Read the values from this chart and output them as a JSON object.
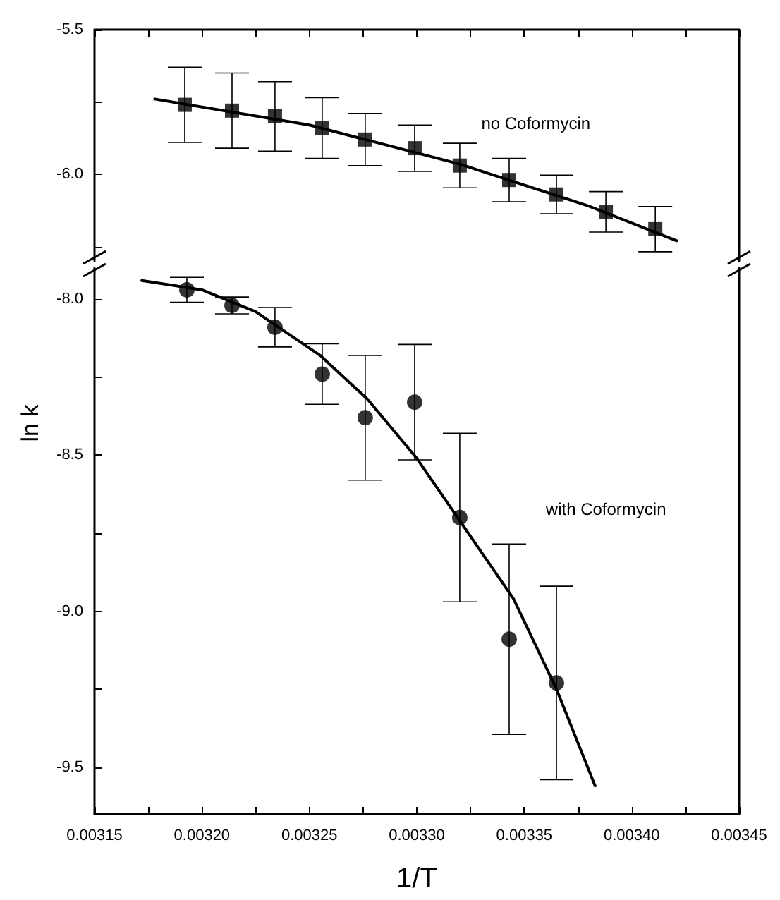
{
  "chart_data": [
    {
      "type": "scatter",
      "xlim": [
        0.00315,
        0.00345
      ],
      "ylim": [
        -6.3,
        -5.5
      ],
      "tick_labels": "y",
      "xticks": [
        {
          "value": 0.00315,
          "label": null
        },
        {
          "value": 0.003175,
          "label": null
        },
        {
          "value": 0.0032,
          "label": null
        },
        {
          "value": 0.003225,
          "label": null
        },
        {
          "value": 0.00325,
          "label": null
        },
        {
          "value": 0.003275,
          "label": null
        },
        {
          "value": 0.0033,
          "label": null
        },
        {
          "value": 0.003325,
          "label": null
        },
        {
          "value": 0.00335,
          "label": null
        },
        {
          "value": 0.003375,
          "label": null
        },
        {
          "value": 0.0034,
          "label": null
        },
        {
          "value": 0.003425,
          "label": null
        },
        {
          "value": 0.00345,
          "label": null
        }
      ],
      "yticks": [
        -5.5,
        {
          "value": -5.75,
          "label": null
        },
        {
          "value": -6.0,
          "label": "-6.0"
        },
        {
          "value": -6.25,
          "label": null
        }
      ],
      "grid": false,
      "legend": false,
      "series": [
        {
          "name": "no Coformycin",
          "type": "scatter",
          "marker": "square",
          "color": "#000000",
          "x": [
            0.003192,
            0.003214,
            0.003234,
            0.003256,
            0.003276,
            0.003299,
            0.00332,
            0.003343,
            0.003365,
            0.003388,
            0.003411
          ],
          "values": [
            -5.76,
            -5.78,
            -5.8,
            -5.84,
            -5.88,
            -5.91,
            -5.97,
            -6.02,
            -6.07,
            -6.13,
            -6.19
          ],
          "errors": [
            0.13,
            0.13,
            0.12,
            0.105,
            0.09,
            0.08,
            0.077,
            0.075,
            0.067,
            0.07,
            0.078
          ]
        },
        {
          "type": "line",
          "marker": "none",
          "line_style": "solid",
          "color": "#000000",
          "x": [
            0.003178,
            0.00325,
            0.00332,
            0.00338,
            0.003421
          ],
          "values": [
            -5.74,
            -5.83,
            -5.965,
            -6.11,
            -6.23
          ]
        }
      ]
    },
    {
      "type": "scatter",
      "xlim": [
        0.00315,
        0.00345
      ],
      "ylim": [
        -9.65,
        -7.9
      ],
      "xlabel": "1/T",
      "ylabel": "ln k",
      "xticks": [
        {
          "value": 0.00315,
          "label": "0.00315"
        },
        {
          "value": 0.003175,
          "label": null
        },
        {
          "value": 0.0032,
          "label": "0.00320"
        },
        {
          "value": 0.003225,
          "label": null
        },
        {
          "value": 0.00325,
          "label": "0.00325"
        },
        {
          "value": 0.003275,
          "label": null
        },
        {
          "value": 0.0033,
          "label": "0.00330"
        },
        {
          "value": 0.003325,
          "label": null
        },
        {
          "value": 0.00335,
          "label": "0.00335"
        },
        {
          "value": 0.003375,
          "label": null
        },
        {
          "value": 0.0034,
          "label": "0.00340"
        },
        {
          "value": 0.003425,
          "label": null
        },
        {
          "value": 0.00345,
          "label": "0.00345"
        }
      ],
      "yticks": [
        {
          "value": -8.0,
          "label": "-8.0"
        },
        {
          "value": -8.25,
          "label": null
        },
        -8.5,
        {
          "value": -8.75,
          "label": null
        },
        {
          "value": -9.0,
          "label": "-9.0"
        },
        {
          "value": -9.25,
          "label": null
        },
        -9.5
      ],
      "grid": false,
      "legend": false,
      "series": [
        {
          "name": "with Coformycin",
          "type": "scatter",
          "marker": "circle",
          "color": "#000000",
          "x": [
            0.003193,
            0.003214,
            0.003234,
            0.003256,
            0.003276,
            0.003299,
            0.00332,
            0.003343,
            0.003365
          ],
          "values": [
            -7.97,
            -8.02,
            -8.09,
            -8.24,
            -8.38,
            -8.33,
            -8.7,
            -9.09,
            -9.23
          ],
          "errors": [
            0.04,
            0.027,
            0.063,
            0.097,
            0.2,
            0.185,
            0.27,
            0.305,
            0.31
          ]
        },
        {
          "type": "line",
          "marker": "none",
          "line_style": "solid",
          "color": "#000000",
          "x": [
            0.003172,
            0.0032,
            0.003225,
            0.003255,
            0.003277,
            0.0033,
            0.003332,
            0.003345,
            0.003365,
            0.003383
          ],
          "values": [
            -7.94,
            -7.97,
            -8.04,
            -8.18,
            -8.32,
            -8.51,
            -8.83,
            -8.96,
            -9.25,
            -9.56
          ]
        }
      ]
    }
  ]
}
